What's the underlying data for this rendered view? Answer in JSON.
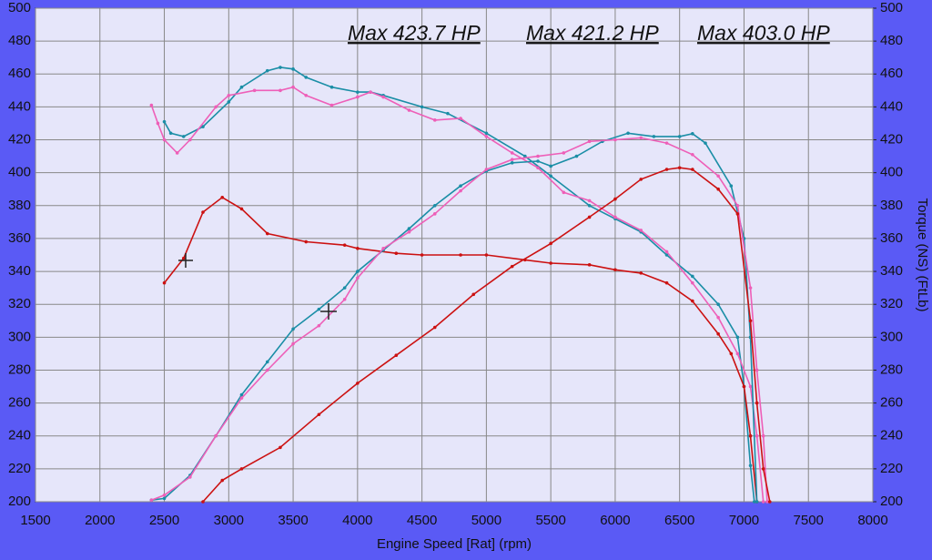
{
  "chart_data": {
    "type": "line",
    "xlabel": "Engine Speed [Rat] (rpm)",
    "y2label": "Torque (NS) (FtLb)",
    "xlim": [
      1500,
      8000
    ],
    "xticks": [
      1500,
      2000,
      2500,
      3000,
      3500,
      4000,
      4500,
      5000,
      5500,
      6000,
      6500,
      7000,
      7500,
      8000
    ],
    "ylim": [
      200,
      500
    ],
    "yticks": [
      200,
      220,
      240,
      260,
      280,
      300,
      320,
      340,
      360,
      380,
      400,
      420,
      440,
      460,
      480,
      500
    ],
    "y2lim": [
      200,
      500
    ],
    "y2ticks": [
      200,
      220,
      240,
      260,
      280,
      300,
      320,
      340,
      360,
      380,
      400,
      420,
      440,
      460,
      480,
      500
    ],
    "grid": true,
    "annotations": [
      {
        "text": "Max 423.7 HP",
        "color": "#1a8ea6"
      },
      {
        "text": "Max 421.2 HP",
        "color": "#ee5fb8"
      },
      {
        "text": "Max 403.0 HP",
        "color": "#cc1111"
      }
    ],
    "series": [
      {
        "color": "#1a8ea6",
        "x": [
          2500,
          2550,
          2650,
          2800,
          3000,
          3100,
          3300,
          3400,
          3500,
          3600,
          3800,
          4000,
          4100,
          4200,
          4500,
          4700,
          5000,
          5300,
          5500,
          5800,
          6000,
          6200,
          6400,
          6600,
          6800,
          6950,
          7000,
          7050,
          7080
        ],
        "values": [
          431,
          424,
          422,
          428,
          443,
          452,
          462,
          464,
          463,
          458,
          452,
          449,
          449,
          447,
          440,
          436,
          424,
          410,
          398,
          380,
          372,
          364,
          350,
          337,
          320,
          300,
          270,
          222,
          200
        ]
      },
      {
        "color": "#ee5fb8",
        "x": [
          2400,
          2450,
          2500,
          2600,
          2700,
          2900,
          3000,
          3200,
          3400,
          3500,
          3600,
          3800,
          4000,
          4100,
          4200,
          4400,
          4600,
          4800,
          5000,
          5200,
          5400,
          5600,
          5800,
          6000,
          6200,
          6400,
          6600,
          6800,
          6950,
          7050,
          7100,
          7150
        ],
        "values": [
          441,
          430,
          420,
          412,
          420,
          440,
          447,
          450,
          450,
          452,
          447,
          441,
          446,
          449,
          446,
          438,
          432,
          433,
          422,
          412,
          403,
          388,
          383,
          373,
          365,
          352,
          333,
          312,
          290,
          270,
          240,
          200
        ]
      },
      {
        "color": "#cc1111",
        "x": [
          2500,
          2650,
          2800,
          2950,
          3100,
          3300,
          3600,
          3900,
          4000,
          4300,
          4500,
          4800,
          5000,
          5300,
          5500,
          5800,
          6000,
          6200,
          6400,
          6600,
          6800,
          6900,
          7000,
          7050,
          7100
        ],
        "values": [
          333,
          348,
          376,
          385,
          378,
          363,
          358,
          356,
          354,
          351,
          350,
          350,
          350,
          347,
          345,
          344,
          341,
          339,
          333,
          322,
          302,
          290,
          270,
          240,
          200
        ]
      },
      {
        "color": "#1a8ea6",
        "x": [
          2400,
          2500,
          2700,
          2900,
          3100,
          3300,
          3500,
          3700,
          3900,
          4000,
          4200,
          4400,
          4600,
          4800,
          5000,
          5200,
          5400,
          5500,
          5700,
          5900,
          6100,
          6300,
          6500,
          6600,
          6700,
          6900,
          7000,
          7050,
          7100
        ],
        "values": [
          201,
          202,
          216,
          240,
          265,
          285,
          305,
          317,
          330,
          340,
          353,
          366,
          380,
          392,
          401,
          406,
          407,
          404,
          410,
          419,
          424,
          422,
          422,
          423.7,
          418,
          392,
          360,
          300,
          200
        ]
      },
      {
        "color": "#ee5fb8",
        "x": [
          2400,
          2500,
          2700,
          2900,
          3100,
          3300,
          3500,
          3700,
          3900,
          4000,
          4200,
          4400,
          4600,
          4800,
          5000,
          5200,
          5400,
          5600,
          5800,
          6000,
          6200,
          6400,
          6600,
          6800,
          6950,
          7050,
          7100,
          7150,
          7180
        ],
        "values": [
          201,
          204,
          215,
          240,
          263,
          280,
          296,
          307,
          323,
          336,
          354,
          364,
          375,
          389,
          402,
          408,
          410,
          412,
          419,
          420,
          421.2,
          418,
          411,
          398,
          380,
          330,
          280,
          240,
          200
        ]
      },
      {
        "color": "#cc1111",
        "x": [
          2800,
          2950,
          3100,
          3400,
          3700,
          4000,
          4300,
          4600,
          4900,
          5200,
          5500,
          5800,
          6000,
          6200,
          6400,
          6500,
          6600,
          6800,
          6950,
          7050,
          7100,
          7150,
          7200
        ],
        "values": [
          200,
          213,
          220,
          233,
          253,
          272,
          289,
          306,
          326,
          343,
          357,
          373,
          384,
          396,
          402,
          403,
          402,
          390,
          375,
          310,
          260,
          220,
          200
        ]
      }
    ]
  }
}
